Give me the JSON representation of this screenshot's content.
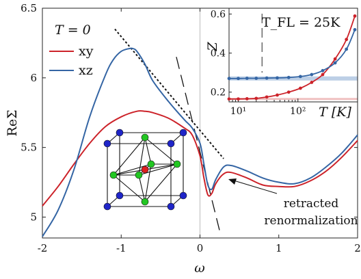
{
  "chart_data": {
    "type": "line",
    "main": {
      "xlabel": "ω",
      "ylabel": "ReΣ",
      "xlim": [
        -2,
        2
      ],
      "ylim": [
        4.85,
        6.5
      ],
      "xticks": [
        -2,
        -1,
        0,
        1,
        2
      ],
      "yticks": [
        5,
        5.5,
        6,
        6.5
      ],
      "annotation_T": "T = 0",
      "annotation_text": [
        "retracted",
        "renormalization"
      ],
      "series": [
        {
          "name": "xy",
          "color": "#cc2229",
          "x": [
            -2.0,
            -1.8,
            -1.6,
            -1.4,
            -1.2,
            -1.0,
            -0.8,
            -0.7,
            -0.6,
            -0.4,
            -0.2,
            -0.1,
            0.0,
            0.05,
            0.1,
            0.15,
            0.2,
            0.3,
            0.4,
            0.6,
            0.8,
            1.0,
            1.2,
            1.4,
            1.6,
            1.8,
            2.0
          ],
          "y": [
            5.08,
            5.22,
            5.38,
            5.53,
            5.65,
            5.72,
            5.76,
            5.76,
            5.75,
            5.71,
            5.64,
            5.59,
            5.44,
            5.28,
            5.16,
            5.17,
            5.24,
            5.31,
            5.32,
            5.28,
            5.23,
            5.22,
            5.22,
            5.26,
            5.33,
            5.43,
            5.55
          ]
        },
        {
          "name": "xz",
          "color": "#3465a4",
          "x": [
            -2.0,
            -1.8,
            -1.6,
            -1.4,
            -1.2,
            -1.1,
            -1.0,
            -0.9,
            -0.85,
            -0.8,
            -0.7,
            -0.6,
            -0.4,
            -0.2,
            -0.1,
            0.0,
            0.05,
            0.1,
            0.15,
            0.2,
            0.3,
            0.4,
            0.6,
            0.8,
            1.0,
            1.2,
            1.4,
            1.6,
            1.8,
            2.0
          ],
          "y": [
            4.86,
            5.05,
            5.34,
            5.72,
            6.02,
            6.13,
            6.19,
            6.21,
            6.21,
            6.19,
            6.1,
            5.98,
            5.83,
            5.7,
            5.64,
            5.53,
            5.38,
            5.23,
            5.2,
            5.27,
            5.36,
            5.37,
            5.33,
            5.28,
            5.25,
            5.24,
            5.28,
            5.36,
            5.46,
            5.59
          ]
        }
      ],
      "guides": [
        {
          "style": "dotted",
          "x": [
            -1.08,
            0.3
          ],
          "y": [
            6.35,
            5.42
          ]
        },
        {
          "style": "dashed",
          "x": [
            -0.3,
            0.25
          ],
          "y": [
            6.15,
            4.9
          ]
        }
      ]
    },
    "inset": {
      "xlabel": "T [K]",
      "ylabel": "Z",
      "xscale": "log",
      "xlim": [
        7,
        1000
      ],
      "ylim": [
        0.15,
        0.63
      ],
      "yticks": [
        0.2,
        0.4,
        0.6
      ],
      "xticks": [
        10,
        100
      ],
      "xtick_labels": [
        "10¹",
        "10²"
      ],
      "annotation": "T_FL = 25K",
      "vline_x": 25,
      "series": [
        {
          "name": "xy",
          "color": "#cc2229",
          "x": [
            7,
            10,
            14,
            20,
            30,
            45,
            70,
            110,
            170,
            260,
            420,
            650,
            900
          ],
          "y": [
            0.165,
            0.165,
            0.166,
            0.168,
            0.175,
            0.185,
            0.2,
            0.22,
            0.25,
            0.29,
            0.37,
            0.47,
            0.59
          ]
        },
        {
          "name": "xz",
          "color": "#3465a4",
          "x": [
            7,
            10,
            14,
            20,
            30,
            45,
            70,
            110,
            170,
            260,
            420,
            650,
            900
          ],
          "y": [
            0.27,
            0.27,
            0.271,
            0.271,
            0.272,
            0.273,
            0.275,
            0.28,
            0.29,
            0.31,
            0.35,
            0.42,
            0.52
          ]
        }
      ],
      "bands": [
        {
          "color": "#bccfe6",
          "y": 0.27
        },
        {
          "color": "#f0c0c0",
          "y": 0.165
        }
      ]
    }
  },
  "lattice_colors": {
    "corner": "#1f25c8",
    "face": "#22c622",
    "center": "#dd1f1f"
  }
}
